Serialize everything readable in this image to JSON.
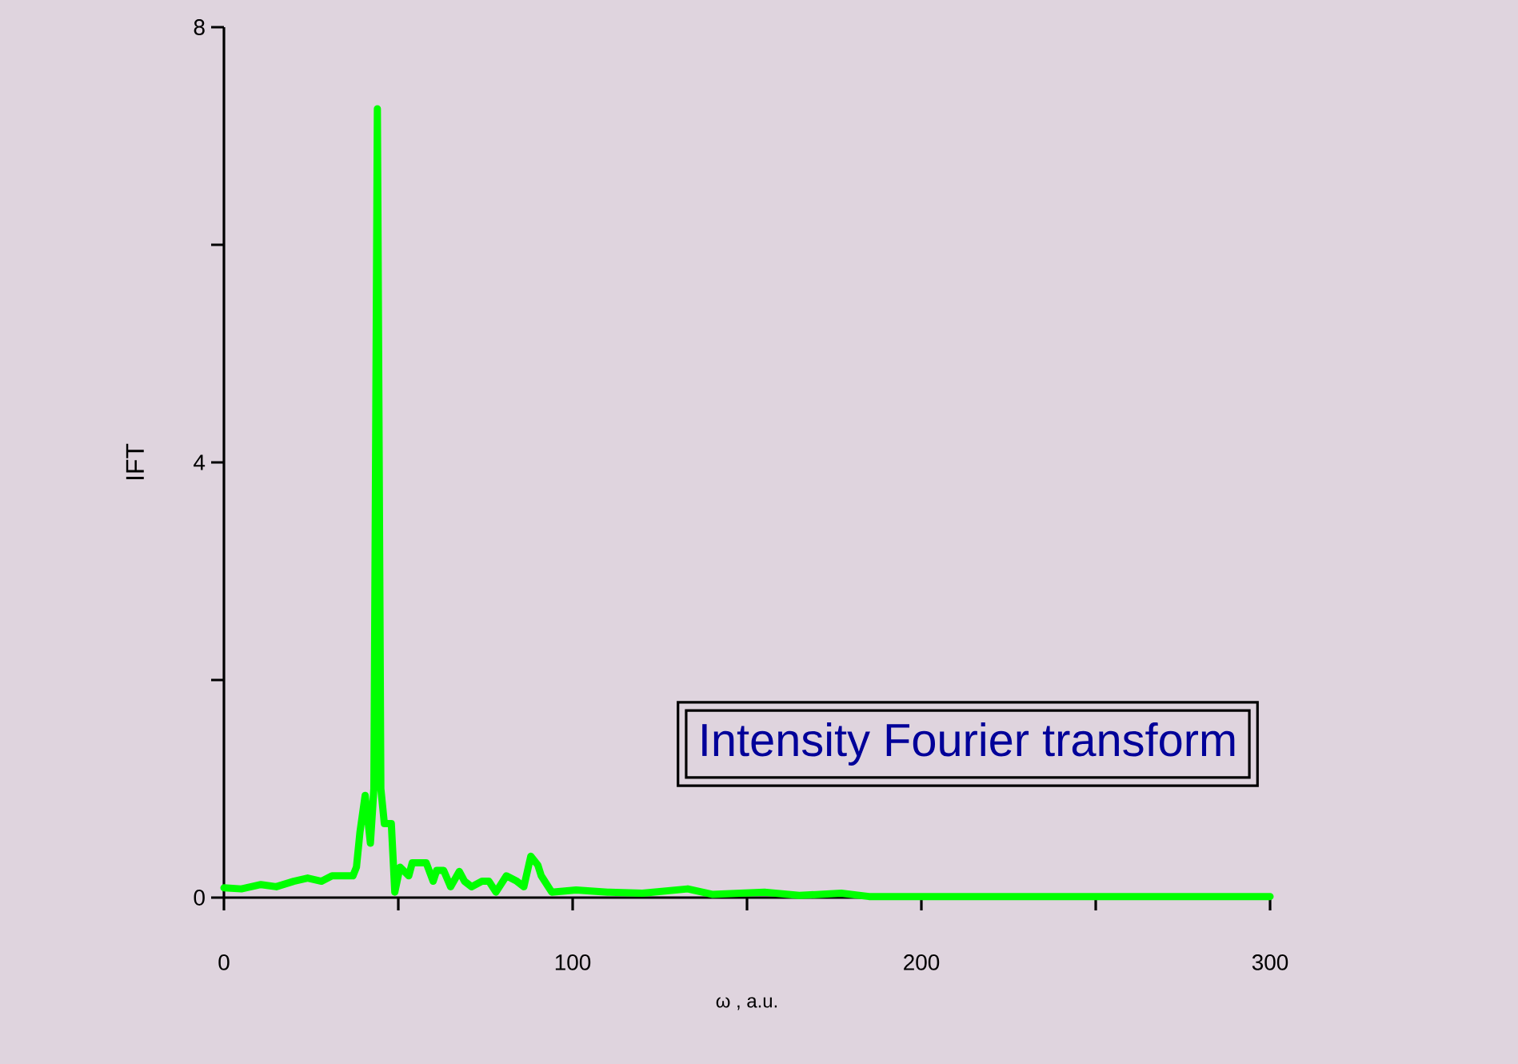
{
  "chart_data": {
    "type": "line",
    "xlabel": "ω , a.u.",
    "ylabel": "IFT",
    "annotations": [
      "Intensity Fourier transform"
    ],
    "xlim": [
      0,
      300
    ],
    "ylim": [
      0,
      8
    ],
    "xticks": [
      0,
      {
        "value": 50,
        "label": null
      },
      100,
      {
        "value": 150,
        "label": null
      },
      200,
      {
        "value": 250,
        "label": null
      },
      300
    ],
    "yticks": [
      0,
      {
        "value": 2,
        "label": null
      },
      4,
      {
        "value": 6,
        "label": null
      },
      8
    ],
    "grid": false,
    "legend": false,
    "marker": "none",
    "line_style": "solid",
    "series": [
      {
        "color": "#00ff00",
        "x": [
          0,
          5,
          10.6,
          15,
          20,
          24,
          28,
          31,
          37,
          38,
          39,
          40.5,
          42,
          43,
          44,
          45,
          46,
          48,
          49,
          50.5,
          53,
          54,
          58,
          60,
          61,
          63,
          65,
          67.5,
          69,
          71,
          74,
          76,
          78,
          81,
          84,
          86,
          88,
          90,
          91,
          94,
          101,
          110,
          120,
          133,
          140,
          155,
          165,
          177,
          185,
          200,
          220,
          250,
          300
        ],
        "values": [
          0.09,
          0.08,
          0.12,
          0.1,
          0.15,
          0.18,
          0.15,
          0.2,
          0.2,
          0.28,
          0.6,
          0.94,
          0.5,
          1.0,
          7.25,
          1.0,
          0.68,
          0.68,
          0.05,
          0.28,
          0.2,
          0.32,
          0.32,
          0.15,
          0.25,
          0.25,
          0.1,
          0.24,
          0.15,
          0.1,
          0.15,
          0.15,
          0.05,
          0.2,
          0.15,
          0.1,
          0.38,
          0.3,
          0.2,
          0.05,
          0.07,
          0.05,
          0.04,
          0.08,
          0.03,
          0.05,
          0.02,
          0.04,
          0.01,
          0.01,
          0.01,
          0.01,
          0.01
        ]
      }
    ]
  }
}
